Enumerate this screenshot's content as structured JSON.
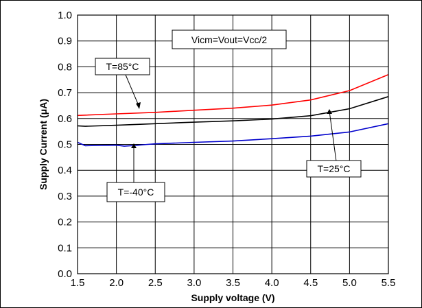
{
  "chart_data": {
    "type": "line",
    "title": "",
    "xlabel": "Supply voltage (V)",
    "ylabel": "Supply Current (μA)",
    "xlim": [
      1.5,
      5.5
    ],
    "ylim": [
      0.0,
      1.0
    ],
    "xticks": [
      "1.5",
      "2.0",
      "2.5",
      "3.0",
      "3.5",
      "4.0",
      "4.5",
      "5.0",
      "5.5"
    ],
    "yticks": [
      "0.0",
      "0.1",
      "0.2",
      "0.3",
      "0.4",
      "0.5",
      "0.6",
      "0.7",
      "0.8",
      "0.9",
      "1.0"
    ],
    "grid": true,
    "annotations": {
      "condition": "Vicm=Vout=Vcc/2",
      "label_85": "T=85°C",
      "label_25": "T=25°C",
      "label_m40": "T=-40°C"
    },
    "series": [
      {
        "name": "T=85°C",
        "color": "#ff0000",
        "x": [
          1.5,
          2.0,
          2.5,
          3.0,
          3.5,
          4.0,
          4.5,
          5.0,
          5.5
        ],
        "y": [
          0.612,
          0.618,
          0.624,
          0.632,
          0.64,
          0.652,
          0.672,
          0.708,
          0.77
        ]
      },
      {
        "name": "T=25°C",
        "color": "#000000",
        "x": [
          1.5,
          1.6,
          2.0,
          2.5,
          3.0,
          3.5,
          4.0,
          4.5,
          5.0,
          5.5
        ],
        "y": [
          0.572,
          0.57,
          0.574,
          0.58,
          0.586,
          0.591,
          0.598,
          0.611,
          0.638,
          0.685
        ]
      },
      {
        "name": "T=-40°C",
        "color": "#0000cc",
        "x": [
          1.5,
          1.6,
          1.8,
          2.0,
          2.1,
          2.25,
          2.4,
          2.5,
          3.0,
          3.5,
          4.0,
          4.5,
          5.0,
          5.5
        ],
        "y": [
          0.508,
          0.495,
          0.496,
          0.497,
          0.493,
          0.496,
          0.5,
          0.502,
          0.508,
          0.513,
          0.522,
          0.532,
          0.548,
          0.58
        ]
      }
    ]
  }
}
